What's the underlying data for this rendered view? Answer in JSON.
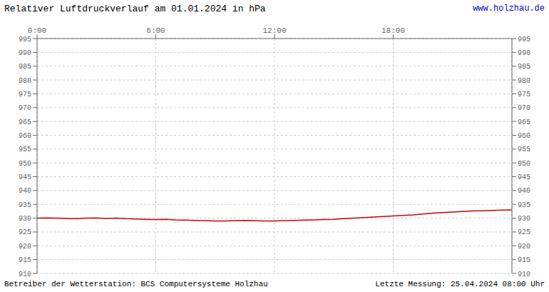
{
  "chart_data": {
    "type": "line",
    "title": "Relativer Luftdruckverlauf am 01.01.2024 in hPa",
    "annotations": [
      "www.holzhau.de",
      "Betreiber der Wetterstation: BCS Computersysteme Holzhau",
      "Letzte Messung: 25.04.2024 08:00 Uhr"
    ],
    "x": [
      0,
      30,
      60,
      90,
      120,
      150,
      180,
      210,
      240,
      270,
      300,
      330,
      360,
      390,
      420,
      450,
      480,
      510,
      540,
      570,
      600,
      630,
      660,
      690,
      720,
      750,
      780,
      810,
      840,
      870,
      900,
      930,
      960,
      990,
      1020,
      1050,
      1080,
      1110,
      1140,
      1170,
      1200,
      1230,
      1260,
      1290,
      1320,
      1350,
      1380,
      1410,
      1440
    ],
    "values": [
      930.0,
      930.1,
      930.0,
      929.9,
      929.8,
      930.0,
      930.1,
      929.9,
      930.0,
      929.8,
      929.7,
      929.6,
      929.5,
      929.6,
      929.4,
      929.3,
      929.2,
      929.1,
      929.0,
      929.0,
      929.1,
      929.2,
      929.1,
      929.0,
      929.0,
      929.1,
      929.2,
      929.3,
      929.4,
      929.5,
      929.6,
      929.8,
      930.0,
      930.2,
      930.4,
      930.6,
      930.8,
      931.0,
      931.2,
      931.5,
      931.8,
      932.0,
      932.2,
      932.4,
      932.6,
      932.7,
      932.8,
      932.9,
      933.0
    ],
    "color": "#cc0000",
    "xlim": [
      0,
      1440
    ],
    "xticks": [
      {
        "value": 0,
        "label": "0:00"
      },
      {
        "value": 360,
        "label": "6:00"
      },
      {
        "value": 720,
        "label": "12:00"
      },
      {
        "value": 1080,
        "label": "18:00"
      }
    ],
    "ylim": [
      910,
      995
    ],
    "yticks": [
      910,
      915,
      920,
      925,
      930,
      935,
      940,
      945,
      950,
      955,
      960,
      965,
      970,
      975,
      980,
      985,
      990,
      995
    ],
    "y2lim": [
      910,
      995
    ],
    "y2ticks": [
      910,
      915,
      920,
      925,
      930,
      935,
      940,
      945,
      950,
      955,
      960,
      965,
      970,
      975,
      980,
      985,
      990,
      995
    ],
    "grid": true
  }
}
